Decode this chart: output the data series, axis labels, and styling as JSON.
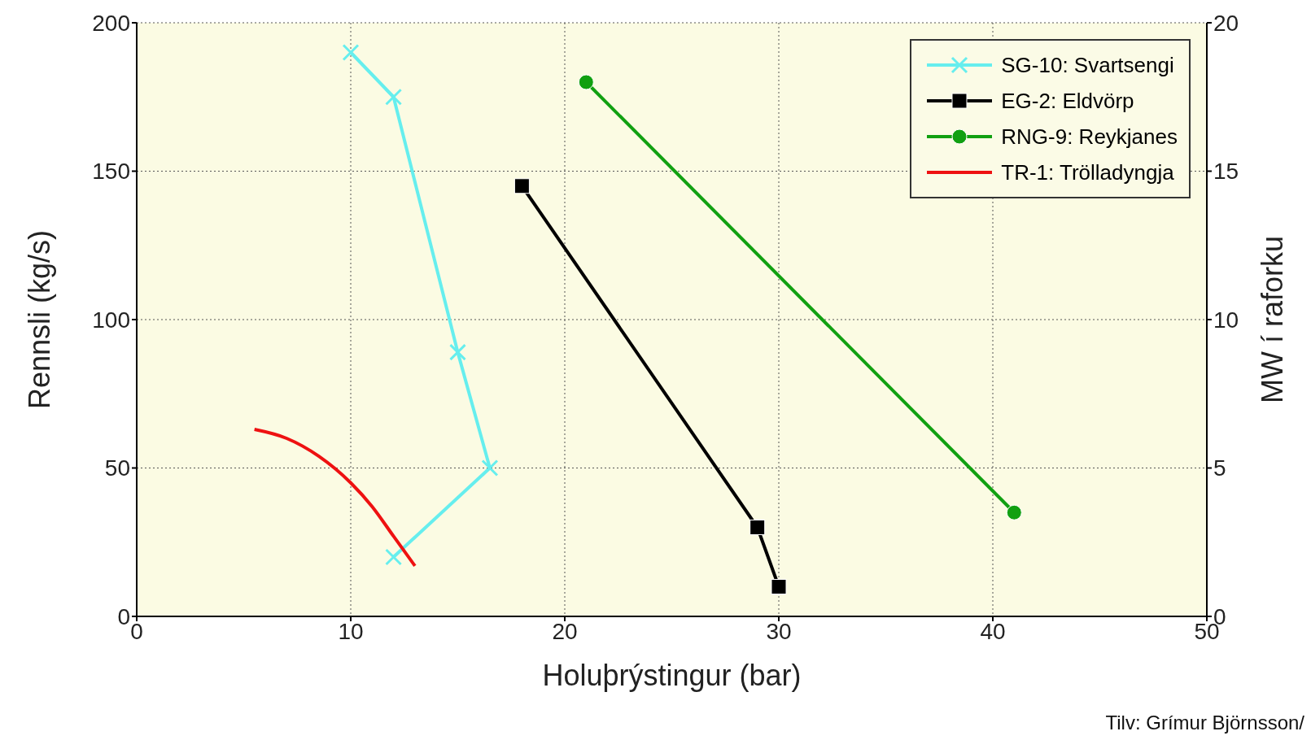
{
  "chart_data": {
    "type": "line",
    "xlabel": "Holuþrýstingur (bar)",
    "ylabel": "Rennsli (kg/s)",
    "y2label": "MW í raforku",
    "xlim": [
      0,
      50
    ],
    "xticks": [
      0,
      10,
      20,
      30,
      40,
      50
    ],
    "ylim": [
      0,
      200
    ],
    "yticks": [
      0,
      50,
      100,
      150,
      200
    ],
    "y2lim": [
      0,
      20
    ],
    "y2ticks": [
      0,
      5,
      10,
      15,
      20
    ],
    "grid": true,
    "legend": "top right",
    "series": [
      {
        "name": "SG-10: Svartsengi",
        "color": "#66eeee",
        "marker": "cross",
        "x": [
          10,
          12,
          15,
          16.5,
          12
        ],
        "values": [
          190,
          175,
          89,
          50,
          20
        ]
      },
      {
        "name": "EG-2: Eldvörp",
        "color": "#000000",
        "marker": "square",
        "x": [
          18,
          29,
          30
        ],
        "values": [
          145,
          30,
          10
        ]
      },
      {
        "name": "RNG-9: Reykjanes",
        "color": "#11a011",
        "marker": "circle",
        "x": [
          21,
          41
        ],
        "values": [
          180,
          35
        ]
      },
      {
        "name": "TR-1: Trölladyngja",
        "color": "#ee1111",
        "marker": "none",
        "x": [
          5.5,
          7,
          8.5,
          10,
          11,
          12,
          13
        ],
        "values": [
          63,
          60,
          54,
          45,
          37,
          27,
          17
        ]
      }
    ],
    "annotations": [
      "Tilv: Grímur Björnsson/"
    ]
  }
}
